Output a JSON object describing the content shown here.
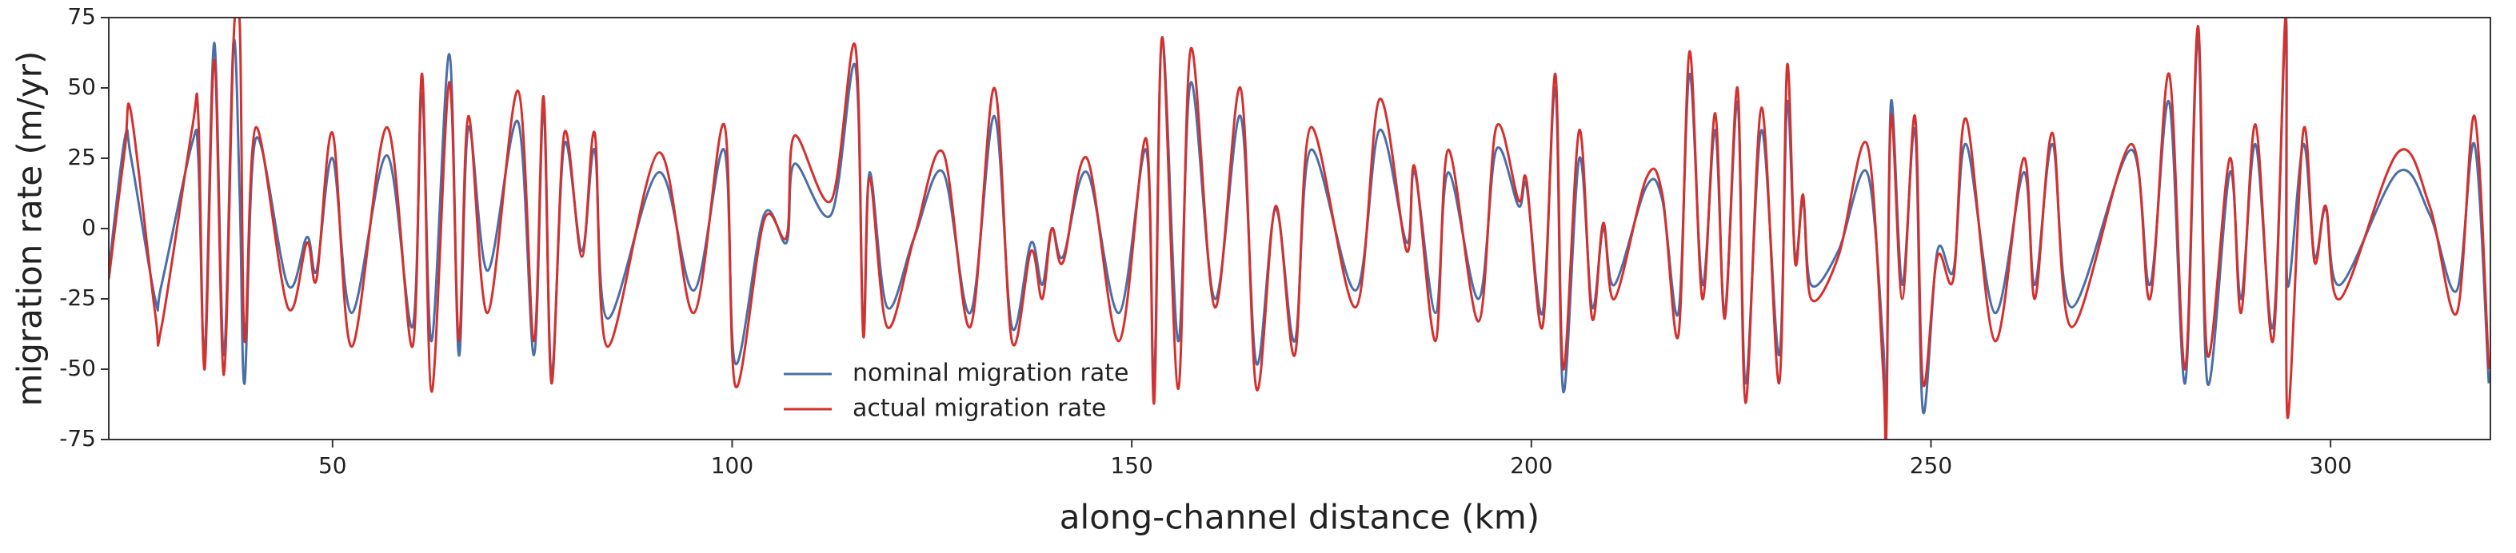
{
  "chart_data": {
    "type": "line",
    "x_label": "along-channel distance (km)",
    "y_label": "migration rate (m/yr)",
    "xlim": [
      22,
      320
    ],
    "ylim": [
      -75,
      75
    ],
    "xticks": [
      50,
      100,
      150,
      200,
      250,
      300
    ],
    "yticks": [
      -75,
      -50,
      -25,
      0,
      25,
      50,
      75
    ],
    "legend": "lower center",
    "x": [
      22,
      24,
      24.8,
      27.8,
      28.6,
      32.4,
      33.2,
      34,
      35.2,
      36.4,
      37.6,
      38.4,
      39,
      40.4,
      44.4,
      46.8,
      48,
      50,
      52.4,
      56.8,
      60,
      61.2,
      62.4,
      64.6,
      65.8,
      67,
      69.4,
      73.2,
      75.2,
      76.4,
      77.4,
      79,
      81.2,
      82.8,
      84.4,
      90.8,
      95.2,
      99,
      100.4,
      104,
      106.8,
      107.8,
      112.4,
      115.4,
      116.4,
      117.2,
      119.4,
      122.8,
      126.4,
      129.8,
      132.8,
      135,
      137.4,
      138.8,
      140,
      141.4,
      144.4,
      148.4,
      151.8,
      152.8,
      153.8,
      155.8,
      157.4,
      160.4,
      163.6,
      165.6,
      168,
      170.4,
      172.4,
      178,
      181,
      184.4,
      185.4,
      188,
      189.6,
      193.4,
      195.6,
      198.4,
      199.4,
      201.4,
      203,
      204,
      206,
      207.6,
      209,
      210.4,
      214.4,
      216.4,
      218.4,
      219.8,
      221.4,
      223,
      224.2,
      225.8,
      226.8,
      228.8,
      231,
      232,
      233,
      234,
      235,
      238.4,
      242,
      244,
      244.4,
      245,
      246.4,
      248,
      249,
      250.8,
      252.8,
      254.4,
      258,
      261.6,
      263,
      265.2,
      267.6,
      275,
      277.4,
      279.8,
      281.8,
      283.4,
      284.6,
      287.4,
      288.8,
      290.6,
      292.8,
      294.4,
      294.6,
      296.6,
      298,
      299.4,
      301.2,
      308.4,
      312.4,
      315.8,
      318,
      319.8
    ],
    "series": [
      {
        "name": "nominal migration rate",
        "color": "#4a6fa8",
        "values": [
          -15,
          32,
          25,
          -25,
          -20,
          30,
          25,
          -45,
          66,
          -45,
          66,
          10,
          -55,
          32,
          -20,
          -3,
          -15,
          25,
          -30,
          26,
          -35,
          48,
          -40,
          62,
          -45,
          36,
          -15,
          38,
          -45,
          43,
          -52,
          30,
          -8,
          28,
          -32,
          20,
          -22,
          28,
          -48,
          5,
          -5,
          23,
          5,
          58,
          -35,
          20,
          -28,
          -3,
          20,
          -30,
          40,
          -35,
          -5,
          -20,
          0,
          -10,
          20,
          -30,
          28,
          -55,
          68,
          -40,
          52,
          -25,
          40,
          -48,
          7,
          -40,
          28,
          -22,
          35,
          -5,
          20,
          -30,
          20,
          -25,
          28,
          8,
          15,
          -30,
          50,
          -58,
          25,
          -28,
          0,
          -20,
          15,
          10,
          -30,
          55,
          -20,
          35,
          -30,
          45,
          -55,
          35,
          -45,
          45,
          -10,
          10,
          -20,
          -8,
          20,
          -40,
          -70,
          45,
          -20,
          35,
          -65,
          -8,
          -15,
          30,
          -30,
          20,
          -20,
          30,
          -28,
          28,
          -20,
          45,
          -55,
          68,
          -55,
          20,
          -25,
          30,
          -35,
          75,
          -20,
          30,
          -10,
          7,
          -20,
          20,
          5,
          -22,
          30,
          -55
        ]
      },
      {
        "name": "actual migration rate",
        "color": "#d3312f",
        "values": [
          -18,
          28,
          41,
          -30,
          -35,
          35,
          40,
          -50,
          60,
          -52,
          66,
          72,
          -40,
          36,
          -28,
          -5,
          -18,
          34,
          -42,
          36,
          -42,
          55,
          -58,
          52,
          -40,
          40,
          -30,
          49,
          -40,
          47,
          -55,
          34,
          -10,
          34,
          -42,
          27,
          -30,
          37,
          -56,
          3,
          -3,
          33,
          10,
          65,
          -38,
          18,
          -35,
          -3,
          27,
          -35,
          50,
          -40,
          -8,
          -25,
          0,
          -12,
          25,
          -40,
          32,
          -62,
          68,
          -57,
          64,
          -28,
          50,
          -57,
          8,
          -45,
          36,
          -28,
          46,
          -8,
          22,
          -40,
          28,
          -33,
          36,
          10,
          17,
          -35,
          55,
          -50,
          35,
          -32,
          2,
          -25,
          18,
          12,
          -38,
          63,
          -25,
          41,
          -32,
          50,
          -62,
          43,
          -55,
          58,
          -12,
          12,
          -25,
          -10,
          30,
          -50,
          -75,
          40,
          -25,
          40,
          -55,
          -10,
          -18,
          39,
          -40,
          25,
          -25,
          34,
          -35,
          30,
          -25,
          55,
          -50,
          72,
          -45,
          25,
          -30,
          37,
          -40,
          75,
          -67,
          35,
          -12,
          8,
          -25,
          27,
          8,
          -30,
          40,
          -50
        ]
      }
    ]
  }
}
